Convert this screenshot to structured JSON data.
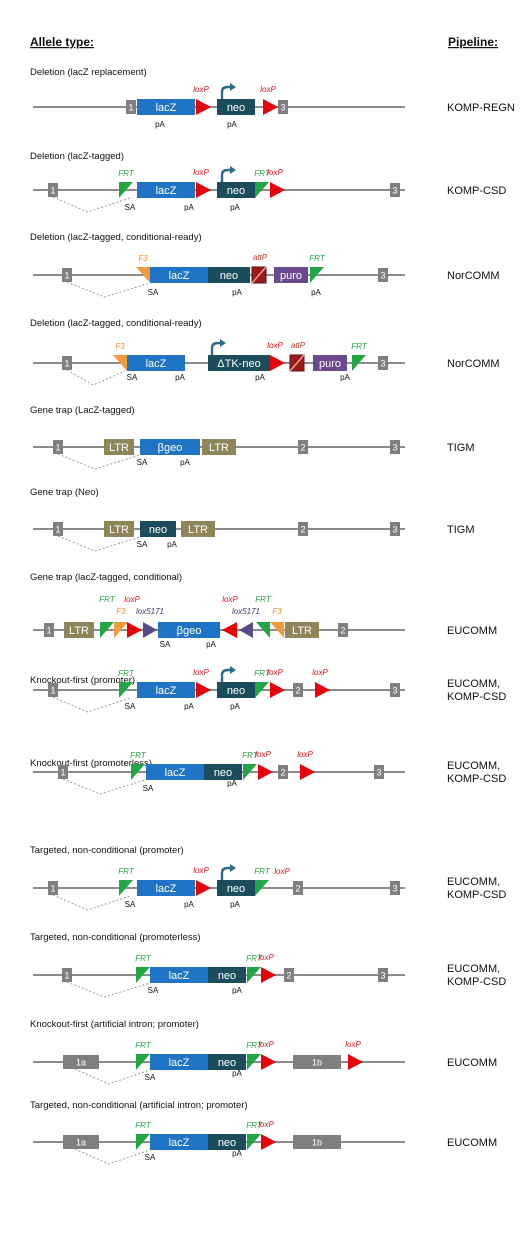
{
  "headers": {
    "allele": "Allele type:",
    "pipeline": "Pipeline:"
  },
  "colors": {
    "lacz": "#1f74c6",
    "neo": "#1b4d5c",
    "exon": "#7f7f7f",
    "loxp": "#e6000a",
    "frt": "#22a545",
    "f3": "#f39b3c",
    "lox5171": "#5b4a8a",
    "ltr": "#8e8559",
    "puro": "#6a4a8c",
    "attp_box": "#9b1b1b",
    "line": "#8c8c8c",
    "loxp_text": "#e0101b",
    "frt_text": "#22a545",
    "f3_text": "#f08a24",
    "attp_text": "#c0392b",
    "lox5171_text": "#4b3d78",
    "promoter": "#2d6b8a"
  },
  "symbols": {
    "loxp": "loxP",
    "frt": "FRT",
    "f3": "F3",
    "attp": "attP",
    "lox5171": "lox5171",
    "sa": "SA",
    "pa": "pA",
    "lacz": "lacZ",
    "neo": "neo",
    "tkneo": "ΔTK-neo",
    "puro": "puro",
    "bgeo": "βgeo",
    "ltr": "LTR"
  },
  "rows": [
    {
      "title": "Deletion (lacZ replacement)",
      "pipeline": [
        "KOMP-REGN"
      ],
      "exons": [
        {
          "label": "1"
        },
        {
          "label": "3"
        }
      ]
    },
    {
      "title": "Deletion (lacZ-tagged)",
      "pipeline": [
        "KOMP-CSD"
      ],
      "exons": [
        {
          "label": "1"
        },
        {
          "label": "3"
        }
      ]
    },
    {
      "title": "Deletion (lacZ-tagged, conditional-ready)",
      "pipeline": [
        "NorCOMM"
      ],
      "exons": [
        {
          "label": "1"
        },
        {
          "label": "3"
        }
      ]
    },
    {
      "title": "Deletion (lacZ-tagged, conditional-ready)",
      "pipeline": [
        "NorCOMM"
      ],
      "exons": [
        {
          "label": "1"
        },
        {
          "label": "3"
        }
      ]
    },
    {
      "title": "Gene trap (LacZ-tagged)",
      "pipeline": [
        "TIGM"
      ],
      "exons": [
        {
          "label": "1"
        },
        {
          "label": "2"
        },
        {
          "label": "3"
        }
      ]
    },
    {
      "title": "Gene trap (Neo)",
      "pipeline": [
        "TIGM"
      ],
      "exons": [
        {
          "label": "1"
        },
        {
          "label": "2"
        },
        {
          "label": "3"
        }
      ]
    },
    {
      "title": "Gene trap (lacZ-tagged, conditional)",
      "pipeline": [
        "EUCOMM"
      ],
      "exons": [
        {
          "label": "1"
        },
        {
          "label": "2"
        }
      ]
    },
    {
      "title": "Knockout-first (promoter)",
      "pipeline": [
        "EUCOMM,",
        "KOMP-CSD"
      ],
      "exons": [
        {
          "label": "1"
        },
        {
          "label": "2"
        },
        {
          "label": "3"
        }
      ]
    },
    {
      "title": "Knockout-first (promoterless)",
      "pipeline": [
        "EUCOMM,",
        "KOMP-CSD"
      ],
      "exons": [
        {
          "label": "1"
        },
        {
          "label": "2"
        },
        {
          "label": "3"
        }
      ]
    },
    {
      "title": "Targeted, non-conditional (promoter)",
      "pipeline": [
        "EUCOMM,",
        "KOMP-CSD"
      ],
      "exons": [
        {
          "label": "1"
        },
        {
          "label": "2"
        },
        {
          "label": "3"
        }
      ]
    },
    {
      "title": "Targeted, non-conditional (promoterless)",
      "pipeline": [
        "EUCOMM,",
        "KOMP-CSD"
      ],
      "exons": [
        {
          "label": "1"
        },
        {
          "label": "2"
        },
        {
          "label": "3"
        }
      ]
    },
    {
      "title": "Knockout-first (artificial intron; promoter)",
      "pipeline": [
        "EUCOMM"
      ],
      "exons": [
        {
          "label": "1a"
        },
        {
          "label": "1b"
        }
      ]
    },
    {
      "title": "Targeted, non-conditional (artificial intron; promoter)",
      "pipeline": [
        "EUCOMM"
      ],
      "exons": [
        {
          "label": "1a"
        },
        {
          "label": "1b"
        }
      ]
    }
  ]
}
